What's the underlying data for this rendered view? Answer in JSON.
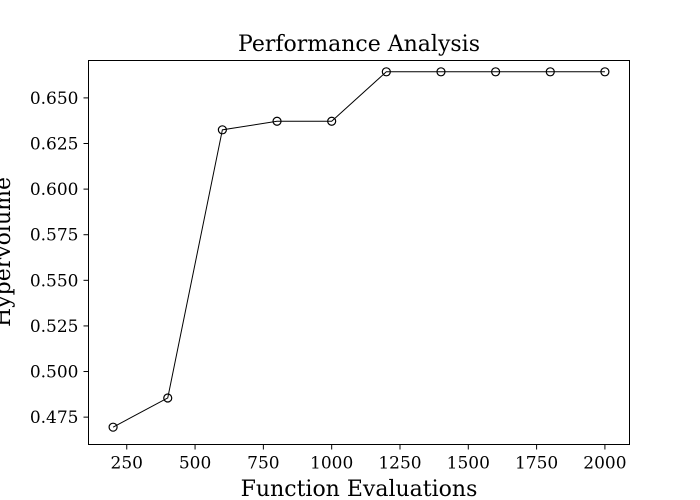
{
  "chart_data": {
    "type": "line",
    "title": "Performance Analysis",
    "xlabel": "Function Evaluations",
    "ylabel": "Hypervolume",
    "xlim": [
      110,
      2090
    ],
    "ylim": [
      0.46,
      0.6705
    ],
    "xticks": [
      250,
      500,
      750,
      1000,
      1250,
      1500,
      1750,
      2000
    ],
    "xtick_labels": [
      "250",
      "500",
      "750",
      "1000",
      "1250",
      "1500",
      "1750",
      "2000"
    ],
    "yticks": [
      0.475,
      0.5,
      0.525,
      0.55,
      0.575,
      0.6,
      0.625,
      0.65
    ],
    "ytick_labels": [
      "0.475",
      "0.500",
      "0.525",
      "0.550",
      "0.575",
      "0.600",
      "0.625",
      "0.650"
    ],
    "grid": false,
    "marker": "open-circle",
    "line_color": "#000000",
    "series": [
      {
        "name": "Hypervolume",
        "x": [
          200,
          400,
          600,
          800,
          1000,
          1200,
          1400,
          1600,
          1800,
          2000
        ],
        "y": [
          0.4695,
          0.4855,
          0.6325,
          0.6372,
          0.6372,
          0.6643,
          0.6643,
          0.6643,
          0.6643,
          0.6643
        ]
      }
    ]
  }
}
